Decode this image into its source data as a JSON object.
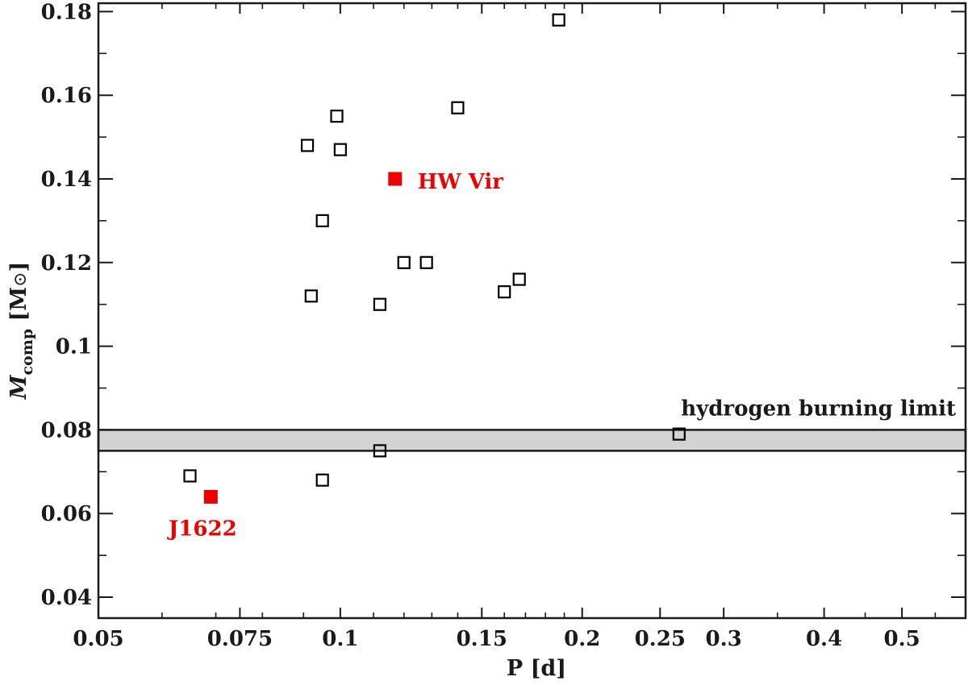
{
  "chart_data": {
    "type": "scatter",
    "title": "",
    "xlabel": "P [d]",
    "ylabel": "M",
    "ylabel_sub": "comp",
    "ylabel_unit_open": " [M",
    "ylabel_unit_symbol": "⊙",
    "ylabel_unit_close": "]",
    "xscale": "log",
    "xlim": [
      0.05,
      0.6
    ],
    "ylim": [
      0.035,
      0.182
    ],
    "grid": false,
    "xticks": [
      0.05,
      0.075,
      0.1,
      0.15,
      0.2,
      0.25,
      0.3,
      0.4,
      0.5
    ],
    "xtick_labels": [
      "0.05",
      "0.075",
      "0.1",
      "0.15",
      "0.2",
      "0.25",
      "0.3",
      "0.4",
      "0.5"
    ],
    "yticks": [
      0.04,
      0.06,
      0.08,
      0.1,
      0.12,
      0.14,
      0.16,
      0.18
    ],
    "ytick_labels": [
      "0.04",
      "0.06",
      "0.08",
      "0.1",
      "0.12",
      "0.14",
      "0.16",
      "0.18"
    ],
    "series": [
      {
        "marker": "open-square",
        "color": "#000000",
        "points": [
          {
            "x": 0.187,
            "y": 0.178
          },
          {
            "x": 0.099,
            "y": 0.155
          },
          {
            "x": 0.14,
            "y": 0.157
          },
          {
            "x": 0.091,
            "y": 0.148
          },
          {
            "x": 0.1,
            "y": 0.147
          },
          {
            "x": 0.095,
            "y": 0.13
          },
          {
            "x": 0.12,
            "y": 0.12
          },
          {
            "x": 0.128,
            "y": 0.12
          },
          {
            "x": 0.092,
            "y": 0.112
          },
          {
            "x": 0.112,
            "y": 0.11
          },
          {
            "x": 0.16,
            "y": 0.113
          },
          {
            "x": 0.167,
            "y": 0.116
          },
          {
            "x": 0.264,
            "y": 0.079
          },
          {
            "x": 0.112,
            "y": 0.075
          },
          {
            "x": 0.065,
            "y": 0.069
          },
          {
            "x": 0.095,
            "y": 0.068
          }
        ]
      },
      {
        "marker": "filled-square",
        "color": "#ee0000",
        "points": [
          {
            "x": 0.117,
            "y": 0.14,
            "label": "HW Vir"
          },
          {
            "x": 0.069,
            "y": 0.064,
            "label": "J1622"
          }
        ]
      }
    ],
    "band": {
      "y0": 0.075,
      "y1": 0.08,
      "fill": "#d3d3d3",
      "label": "hydrogen burning limit"
    }
  }
}
